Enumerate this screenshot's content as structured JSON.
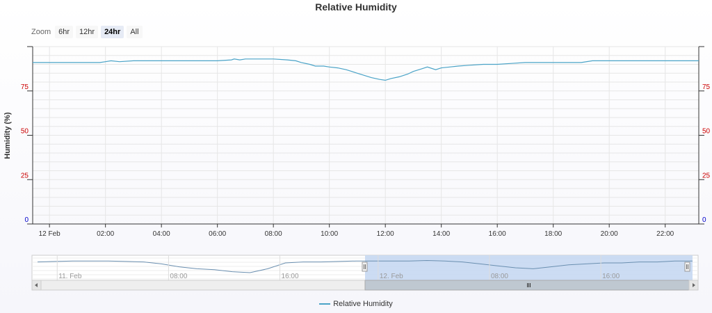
{
  "chart_data": {
    "type": "line",
    "title": "Relative Humidity",
    "ylabel": "Humidity (%)",
    "ylim": [
      0,
      100
    ],
    "yticks_left": [
      "0",
      "25",
      "50",
      "75"
    ],
    "yticks_right": [
      "0",
      "25",
      "50",
      "75"
    ],
    "xticks": [
      "12 Feb",
      "02:00",
      "04:00",
      "06:00",
      "08:00",
      "10:00",
      "12:00",
      "14:00",
      "16:00",
      "18:00",
      "20:00",
      "22:00"
    ],
    "x_range_hours": [
      -0.6,
      23.2
    ],
    "grid": true,
    "legend_position": "bottom-center",
    "series": [
      {
        "name": "Relative Humidity",
        "color": "#4aa3c7",
        "x_hours": [
          -0.6,
          0,
          1,
          1.8,
          2.0,
          2.2,
          2.5,
          3.0,
          4,
          5,
          6,
          6.5,
          6.6,
          6.8,
          7.0,
          7.5,
          8.0,
          8.5,
          8.8,
          9.0,
          9.3,
          9.5,
          9.8,
          10.0,
          10.3,
          10.6,
          10.8,
          11.0,
          11.2,
          11.5,
          11.8,
          12.0,
          12.2,
          12.5,
          12.8,
          13.0,
          13.3,
          13.5,
          13.8,
          14.0,
          14.3,
          14.6,
          15.0,
          15.5,
          16.0,
          16.5,
          17.0,
          18.0,
          19.0,
          19.4,
          20.0,
          21.0,
          22.0,
          23.2
        ],
        "y": [
          91,
          91,
          91,
          91,
          91.5,
          92,
          91.5,
          92,
          92,
          92,
          92,
          92.5,
          93,
          92.5,
          93,
          93,
          93,
          92.5,
          92,
          91,
          90,
          89,
          89,
          88.5,
          88,
          87,
          86,
          85,
          84,
          82.5,
          81.5,
          81,
          82,
          83,
          84.5,
          86,
          87.5,
          88.5,
          87,
          88,
          88.5,
          89,
          89.5,
          90,
          90,
          90.5,
          91,
          91,
          91,
          92,
          92,
          92,
          92,
          92
        ]
      }
    ]
  },
  "zoom": {
    "label": "Zoom",
    "buttons": [
      "6hr",
      "12hr",
      "24hr",
      "All"
    ],
    "active": "24hr"
  },
  "navigator": {
    "xticks": [
      "11. Feb",
      "08:00",
      "16:00",
      "12. Feb",
      "08:00",
      "16:00"
    ],
    "selected_start_fraction": 0.5,
    "selected_end_fraction": 1.0,
    "series_y": [
      91,
      91.5,
      92,
      92,
      92,
      91.5,
      91,
      89,
      86,
      84,
      83,
      81,
      80,
      84,
      90,
      91,
      91,
      91.5,
      92,
      92,
      92,
      92,
      92.5,
      92,
      91,
      89,
      87,
      85,
      84,
      86,
      88,
      89,
      90,
      90,
      91,
      91,
      92,
      92
    ]
  },
  "colors": {
    "series": "#4aa3c7",
    "grid": "#e6e6e6",
    "axis": "#333333",
    "tick_red": "#cc0000",
    "tick_blue": "#0000cc",
    "navigator_mask": "#c6d8f2"
  }
}
